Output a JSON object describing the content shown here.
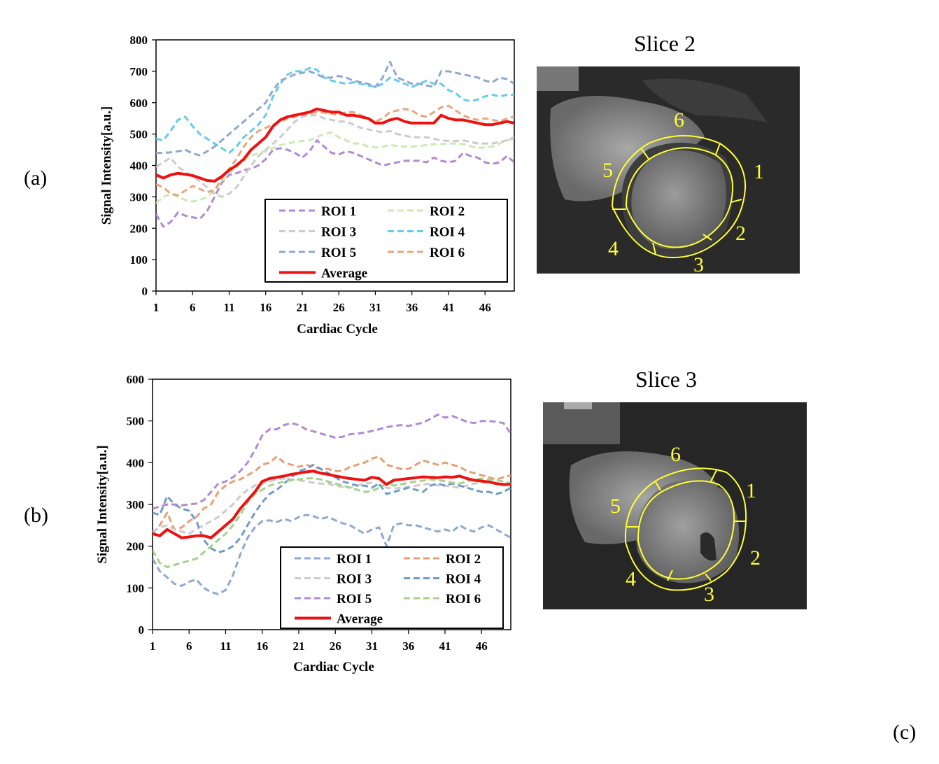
{
  "panel_labels": {
    "a": "(a)",
    "b": "(b)",
    "c": "(c)"
  },
  "colors": {
    "roi_purple": "#b18ad6",
    "roi_lightgreen": "#cde9b4",
    "roi_gray": "#cccccc",
    "roi_cyan": "#66ccee",
    "roi_blue": "#8fa8d0",
    "roi_orange": "#e6a77f",
    "roi_green": "#a6d28a",
    "roi_steel": "#6f9cc6",
    "roi_orange_b": "#e89f73",
    "average": "#ee1111",
    "segment_yellow": "#ffff33"
  },
  "chart_data": [
    {
      "id": "a",
      "type": "line",
      "xlabel": "Cardiac Cycle",
      "ylabel": "Signal Intensity[a.u.]",
      "ylim": [
        0,
        800
      ],
      "xlim": [
        1,
        50
      ],
      "yticks": [
        "0",
        "100",
        "200",
        "300",
        "400",
        "500",
        "600",
        "700",
        "800"
      ],
      "xticks": [
        "1",
        "6",
        "11",
        "16",
        "21",
        "26",
        "31",
        "36",
        "41",
        "46"
      ],
      "series": [
        {
          "name": "ROI 1",
          "color": "#b18ad6",
          "dash": true,
          "values": [
            245,
            205,
            220,
            250,
            240,
            235,
            230,
            255,
            300,
            345,
            370,
            375,
            385,
            390,
            400,
            420,
            450,
            455,
            450,
            440,
            425,
            445,
            480,
            460,
            440,
            435,
            445,
            440,
            430,
            420,
            410,
            400,
            405,
            410,
            415,
            415,
            415,
            410,
            425,
            415,
            410,
            415,
            440,
            430,
            425,
            410,
            405,
            410,
            430,
            410
          ]
        },
        {
          "name": "ROI 2",
          "color": "#cde9b4",
          "dash": true,
          "values": [
            280,
            300,
            310,
            300,
            290,
            285,
            290,
            300,
            320,
            350,
            375,
            395,
            415,
            430,
            440,
            445,
            455,
            465,
            470,
            475,
            478,
            480,
            490,
            500,
            505,
            490,
            480,
            470,
            470,
            460,
            458,
            460,
            465,
            462,
            460,
            460,
            462,
            465,
            468,
            468,
            470,
            470,
            468,
            462,
            455,
            458,
            460,
            470,
            480,
            485
          ]
        },
        {
          "name": "ROI 3",
          "color": "#cccccc",
          "dash": true,
          "values": [
            395,
            410,
            425,
            395,
            380,
            365,
            350,
            330,
            310,
            300,
            310,
            330,
            365,
            400,
            430,
            450,
            470,
            490,
            515,
            540,
            555,
            560,
            560,
            550,
            545,
            540,
            540,
            530,
            520,
            515,
            510,
            505,
            510,
            500,
            495,
            490,
            490,
            490,
            485,
            480,
            478,
            478,
            480,
            475,
            470,
            470,
            470,
            475,
            480,
            490
          ]
        },
        {
          "name": "ROI 4",
          "color": "#66ccee",
          "dash": true,
          "values": [
            485,
            480,
            510,
            545,
            555,
            525,
            500,
            485,
            470,
            455,
            440,
            460,
            490,
            510,
            530,
            560,
            620,
            660,
            690,
            700,
            700,
            710,
            705,
            680,
            670,
            665,
            660,
            665,
            660,
            655,
            650,
            660,
            680,
            670,
            660,
            650,
            660,
            670,
            660,
            660,
            640,
            630,
            610,
            605,
            610,
            620,
            625,
            620,
            625,
            625
          ]
        },
        {
          "name": "ROI 5",
          "color": "#8fa8d0",
          "dash": true,
          "values": [
            440,
            440,
            442,
            445,
            450,
            438,
            432,
            445,
            460,
            480,
            500,
            520,
            540,
            560,
            580,
            600,
            640,
            670,
            680,
            690,
            695,
            700,
            690,
            680,
            680,
            685,
            680,
            670,
            665,
            660,
            650,
            680,
            730,
            680,
            670,
            660,
            660,
            655,
            650,
            700,
            700,
            695,
            690,
            685,
            680,
            670,
            665,
            680,
            675,
            660
          ]
        },
        {
          "name": "ROI 6",
          "color": "#e6a77f",
          "dash": true,
          "values": [
            340,
            330,
            310,
            305,
            320,
            335,
            325,
            315,
            320,
            360,
            390,
            420,
            460,
            490,
            510,
            520,
            530,
            540,
            550,
            555,
            560,
            565,
            570,
            568,
            565,
            560,
            570,
            570,
            560,
            550,
            540,
            550,
            570,
            575,
            580,
            575,
            560,
            555,
            570,
            585,
            590,
            575,
            560,
            550,
            545,
            550,
            545,
            540,
            550,
            555
          ]
        },
        {
          "name": "Average",
          "color": "#ee1111",
          "dash": false,
          "values": [
            370,
            360,
            370,
            375,
            372,
            368,
            360,
            352,
            350,
            365,
            385,
            400,
            420,
            450,
            470,
            490,
            525,
            545,
            555,
            560,
            565,
            570,
            580,
            575,
            570,
            570,
            560,
            560,
            555,
            550,
            535,
            535,
            545,
            550,
            540,
            535,
            535,
            535,
            535,
            560,
            550,
            545,
            545,
            540,
            535,
            530,
            530,
            535,
            540,
            535
          ]
        }
      ]
    },
    {
      "id": "b",
      "type": "line",
      "xlabel": "Cardiac Cycle",
      "ylabel": "Signal Intensity[a.u.]",
      "ylim": [
        0,
        600
      ],
      "xlim": [
        1,
        50
      ],
      "yticks": [
        "0",
        "100",
        "200",
        "300",
        "400",
        "500",
        "600"
      ],
      "xticks": [
        "1",
        "6",
        "11",
        "16",
        "21",
        "26",
        "31",
        "36",
        "41",
        "46"
      ],
      "series": [
        {
          "name": "ROI 1",
          "color": "#8fa8d0",
          "dash": true,
          "values": [
            170,
            140,
            125,
            110,
            105,
            115,
            120,
            100,
            90,
            85,
            95,
            130,
            180,
            220,
            245,
            260,
            262,
            258,
            265,
            260,
            270,
            275,
            272,
            265,
            270,
            262,
            255,
            250,
            240,
            230,
            240,
            245,
            200,
            250,
            255,
            250,
            250,
            245,
            240,
            235,
            240,
            235,
            250,
            240,
            235,
            245,
            250,
            240,
            230,
            220
          ]
        },
        {
          "name": "ROI 2",
          "color": "#e89f73",
          "dash": true,
          "values": [
            230,
            250,
            280,
            240,
            245,
            260,
            270,
            290,
            300,
            330,
            345,
            355,
            360,
            370,
            380,
            395,
            400,
            415,
            400,
            395,
            390,
            395,
            390,
            385,
            385,
            380,
            380,
            390,
            395,
            400,
            410,
            415,
            395,
            390,
            385,
            385,
            395,
            405,
            400,
            395,
            400,
            395,
            390,
            380,
            375,
            370,
            365,
            360,
            365,
            370
          ]
        },
        {
          "name": "ROI 3",
          "color": "#cccccc",
          "dash": true,
          "values": [
            235,
            245,
            250,
            240,
            235,
            230,
            240,
            250,
            260,
            270,
            285,
            300,
            320,
            335,
            345,
            350,
            355,
            360,
            362,
            360,
            358,
            355,
            352,
            350,
            350,
            345,
            342,
            340,
            345,
            350,
            352,
            345,
            340,
            338,
            340,
            342,
            345,
            348,
            350,
            345,
            345,
            342,
            340,
            345,
            350,
            352,
            355,
            350,
            345,
            348
          ]
        },
        {
          "name": "ROI 4",
          "color": "#6f9cc6",
          "dash": true,
          "values": [
            280,
            275,
            320,
            300,
            290,
            285,
            260,
            215,
            195,
            185,
            190,
            200,
            220,
            250,
            280,
            305,
            325,
            335,
            350,
            365,
            380,
            385,
            395,
            385,
            375,
            365,
            355,
            350,
            345,
            345,
            340,
            350,
            325,
            330,
            335,
            340,
            335,
            330,
            345,
            350,
            345,
            350,
            345,
            340,
            335,
            330,
            330,
            325,
            330,
            340
          ]
        },
        {
          "name": "ROI 5",
          "color": "#b18ad6",
          "dash": true,
          "values": [
            290,
            295,
            300,
            300,
            298,
            300,
            302,
            310,
            330,
            350,
            355,
            365,
            380,
            400,
            430,
            465,
            480,
            480,
            490,
            495,
            490,
            480,
            475,
            470,
            465,
            460,
            462,
            468,
            470,
            472,
            476,
            480,
            485,
            488,
            490,
            488,
            492,
            496,
            505,
            515,
            508,
            512,
            505,
            498,
            495,
            500,
            500,
            498,
            495,
            470
          ]
        },
        {
          "name": "ROI 6",
          "color": "#a6d28a",
          "dash": true,
          "values": [
            190,
            160,
            150,
            155,
            160,
            165,
            170,
            185,
            200,
            215,
            230,
            250,
            275,
            305,
            325,
            335,
            345,
            350,
            355,
            358,
            360,
            362,
            363,
            360,
            355,
            350,
            345,
            340,
            335,
            330,
            332,
            340,
            350,
            345,
            348,
            352,
            355,
            357,
            360,
            358,
            356,
            352,
            350,
            355,
            360,
            362,
            360,
            358,
            355,
            350
          ]
        },
        {
          "name": "Average",
          "color": "#ee1111",
          "dash": false,
          "values": [
            230,
            225,
            240,
            230,
            220,
            222,
            225,
            225,
            220,
            235,
            250,
            265,
            290,
            310,
            330,
            355,
            362,
            365,
            368,
            372,
            375,
            378,
            380,
            375,
            372,
            368,
            365,
            362,
            360,
            358,
            365,
            362,
            348,
            358,
            360,
            362,
            364,
            366,
            365,
            364,
            366,
            365,
            368,
            362,
            358,
            356,
            354,
            350,
            348,
            348
          ]
        }
      ]
    }
  ],
  "slices": [
    {
      "title": "Slice 2",
      "segments": [
        "1",
        "2",
        "3",
        "4",
        "5",
        "6"
      ]
    },
    {
      "title": "Slice 3",
      "segments": [
        "1",
        "2",
        "3",
        "4",
        "5",
        "6"
      ]
    }
  ]
}
